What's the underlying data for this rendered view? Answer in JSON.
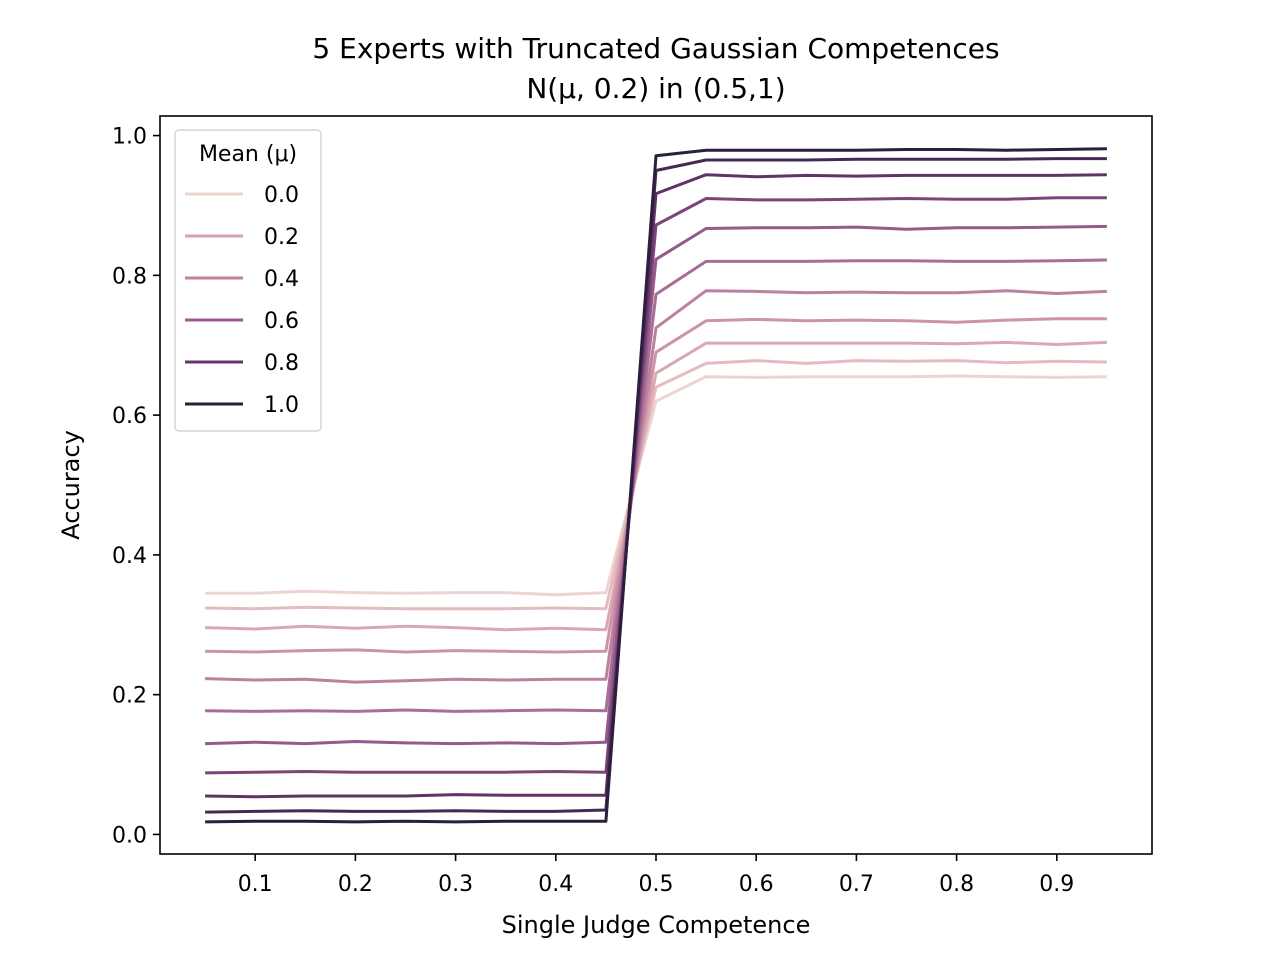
{
  "chart_data": {
    "type": "line",
    "title": "5 Experts with Truncated Gaussian Competences",
    "subtitle": "N(μ, 0.2) in (0.5,1)",
    "xlabel": "Single Judge Competence",
    "ylabel": "Accuracy",
    "xlim": [
      0.005,
      0.995
    ],
    "ylim": [
      -0.028,
      1.028
    ],
    "x": [
      0.05,
      0.1,
      0.15,
      0.2,
      0.25,
      0.3,
      0.35,
      0.4,
      0.45,
      0.5,
      0.55,
      0.6,
      0.65,
      0.7,
      0.75,
      0.8,
      0.85,
      0.9,
      0.95
    ],
    "x_ticks": [
      "0.1",
      "0.2",
      "0.3",
      "0.4",
      "0.5",
      "0.6",
      "0.7",
      "0.8",
      "0.9"
    ],
    "y_ticks": [
      "0.0",
      "0.2",
      "0.4",
      "0.6",
      "0.8",
      "1.0"
    ],
    "grid": false,
    "legend": {
      "title": "Mean (μ)",
      "placement": "top-left",
      "entries": [
        {
          "label": "0.0",
          "color": "#eed4d0"
        },
        {
          "label": "0.2",
          "color": "#d9a2ac"
        },
        {
          "label": "0.4",
          "color": "#c0809e"
        },
        {
          "label": "0.6",
          "color": "#9c5c8c"
        },
        {
          "label": "0.8",
          "color": "#62346a"
        },
        {
          "label": "1.0",
          "color": "#2d1e3e"
        }
      ]
    },
    "series": [
      {
        "color": "#eed4d0",
        "values": [
          0.345,
          0.345,
          0.348,
          0.346,
          0.345,
          0.346,
          0.346,
          0.343,
          0.346,
          0.62,
          0.655,
          0.654,
          0.655,
          0.655,
          0.655,
          0.656,
          0.655,
          0.654,
          0.655
        ]
      },
      {
        "color": "#e4bcbe",
        "values": [
          0.324,
          0.323,
          0.325,
          0.324,
          0.323,
          0.323,
          0.323,
          0.324,
          0.323,
          0.64,
          0.674,
          0.678,
          0.674,
          0.678,
          0.677,
          0.678,
          0.675,
          0.677,
          0.676
        ]
      },
      {
        "color": "#d9a8b2",
        "values": [
          0.296,
          0.294,
          0.298,
          0.295,
          0.298,
          0.296,
          0.293,
          0.295,
          0.293,
          0.66,
          0.703,
          0.703,
          0.703,
          0.703,
          0.703,
          0.702,
          0.704,
          0.701,
          0.704
        ]
      },
      {
        "color": "#cc94a8",
        "values": [
          0.262,
          0.261,
          0.263,
          0.264,
          0.261,
          0.263,
          0.262,
          0.261,
          0.262,
          0.69,
          0.735,
          0.737,
          0.735,
          0.736,
          0.735,
          0.733,
          0.736,
          0.738,
          0.738
        ]
      },
      {
        "color": "#bd80a0",
        "values": [
          0.223,
          0.221,
          0.222,
          0.218,
          0.22,
          0.222,
          0.221,
          0.222,
          0.222,
          0.725,
          0.778,
          0.777,
          0.775,
          0.776,
          0.775,
          0.775,
          0.778,
          0.774,
          0.777
        ]
      },
      {
        "color": "#a96d96",
        "values": [
          0.177,
          0.176,
          0.177,
          0.176,
          0.178,
          0.176,
          0.177,
          0.178,
          0.177,
          0.773,
          0.82,
          0.82,
          0.82,
          0.821,
          0.821,
          0.82,
          0.82,
          0.821,
          0.822
        ]
      },
      {
        "color": "#955a8a",
        "values": [
          0.13,
          0.132,
          0.13,
          0.133,
          0.131,
          0.13,
          0.131,
          0.13,
          0.132,
          0.823,
          0.867,
          0.868,
          0.868,
          0.869,
          0.866,
          0.868,
          0.868,
          0.869,
          0.87
        ]
      },
      {
        "color": "#7a4679",
        "values": [
          0.088,
          0.089,
          0.09,
          0.089,
          0.089,
          0.089,
          0.089,
          0.09,
          0.089,
          0.872,
          0.91,
          0.908,
          0.908,
          0.909,
          0.91,
          0.909,
          0.909,
          0.911,
          0.911
        ]
      },
      {
        "color": "#603466",
        "values": [
          0.055,
          0.054,
          0.055,
          0.055,
          0.055,
          0.057,
          0.056,
          0.056,
          0.056,
          0.917,
          0.944,
          0.941,
          0.943,
          0.942,
          0.943,
          0.943,
          0.943,
          0.943,
          0.944
        ]
      },
      {
        "color": "#472a54",
        "values": [
          0.032,
          0.033,
          0.034,
          0.033,
          0.033,
          0.034,
          0.033,
          0.033,
          0.035,
          0.95,
          0.965,
          0.965,
          0.965,
          0.966,
          0.966,
          0.966,
          0.966,
          0.967,
          0.967
        ]
      },
      {
        "color": "#2d1e3e",
        "values": [
          0.018,
          0.019,
          0.019,
          0.018,
          0.019,
          0.018,
          0.019,
          0.019,
          0.019,
          0.971,
          0.979,
          0.979,
          0.979,
          0.979,
          0.98,
          0.98,
          0.979,
          0.98,
          0.981
        ]
      }
    ]
  }
}
